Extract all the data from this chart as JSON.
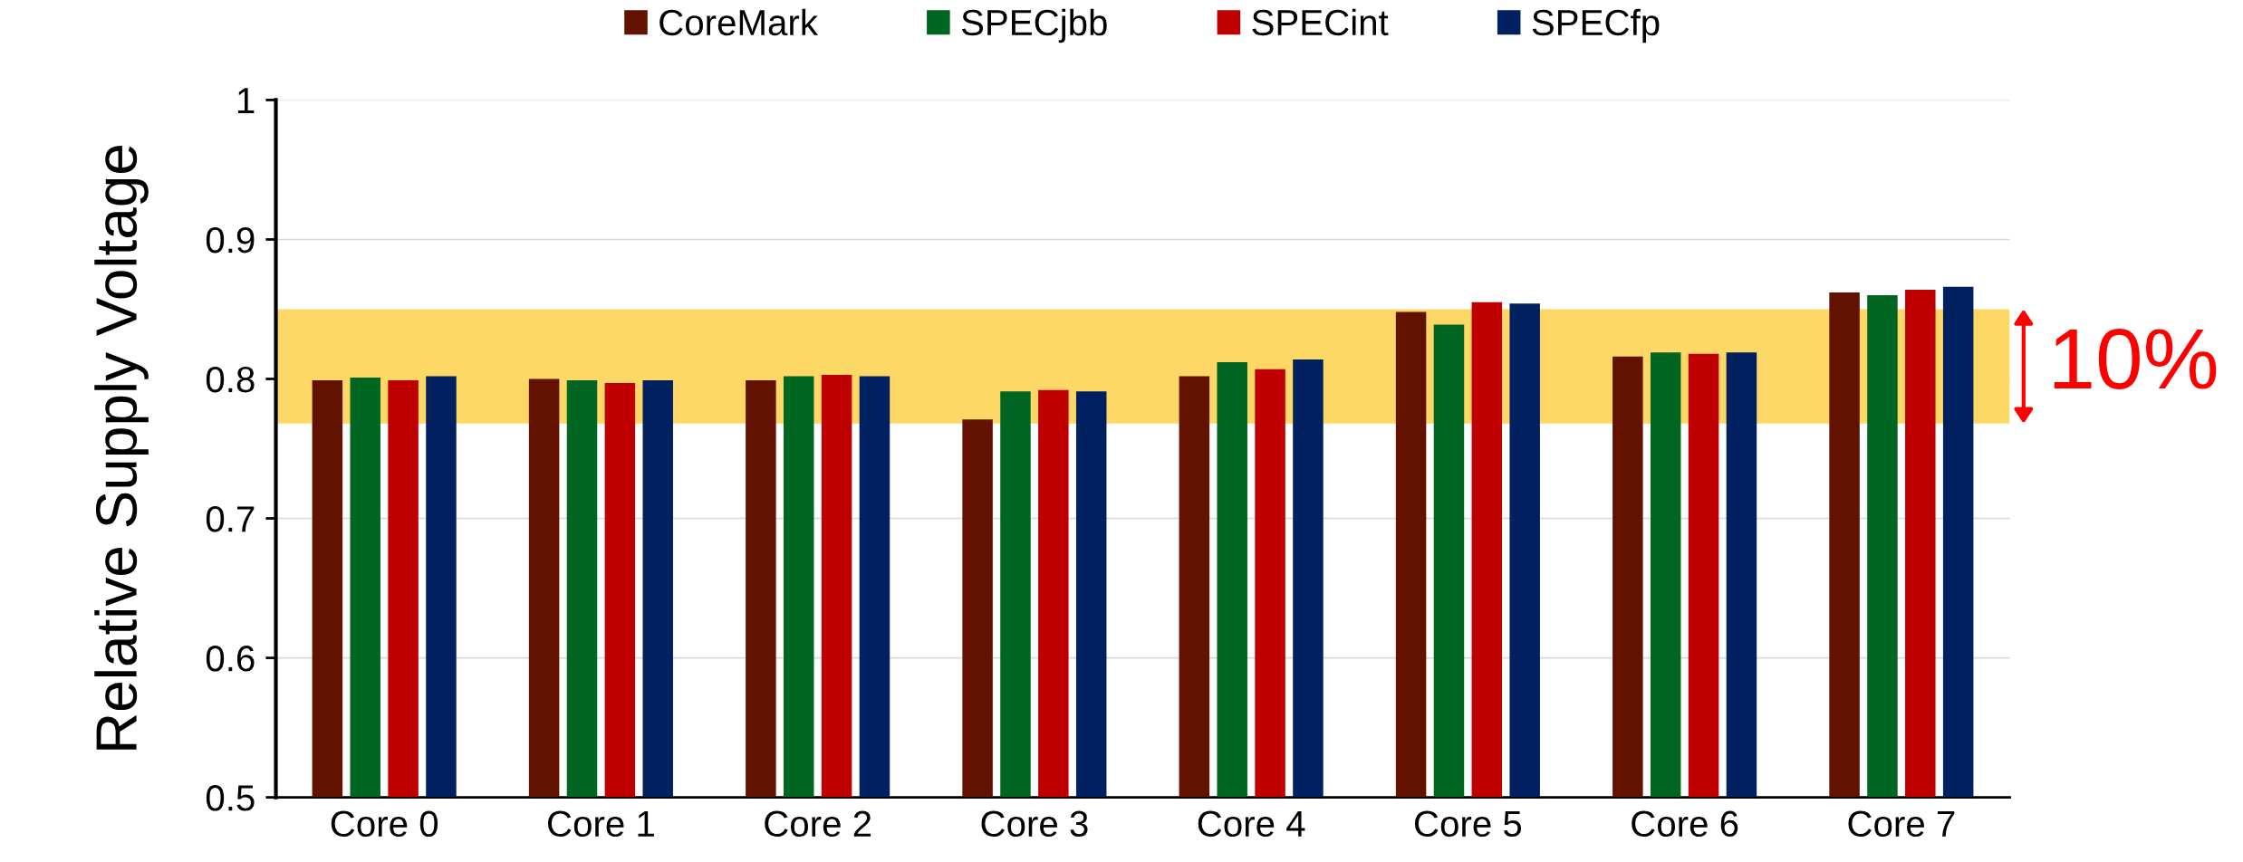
{
  "chart_data": {
    "type": "bar",
    "ylabel": "Relative Supply Voltage",
    "categories": [
      "Core 0",
      "Core 1",
      "Core 2",
      "Core 3",
      "Core 4",
      "Core 5",
      "Core 6",
      "Core 7"
    ],
    "series": [
      {
        "name": "CoreMark",
        "color": "#641200",
        "values": [
          0.799,
          0.8,
          0.799,
          0.771,
          0.802,
          0.848,
          0.816,
          0.862
        ]
      },
      {
        "name": "SPECjbb",
        "color": "#006622",
        "values": [
          0.801,
          0.799,
          0.802,
          0.791,
          0.812,
          0.839,
          0.819,
          0.86
        ]
      },
      {
        "name": "SPECint",
        "color": "#c00000",
        "values": [
          0.799,
          0.797,
          0.803,
          0.792,
          0.807,
          0.855,
          0.818,
          0.864
        ]
      },
      {
        "name": "SPECfp",
        "color": "#002060",
        "values": [
          0.802,
          0.799,
          0.802,
          0.791,
          0.814,
          0.854,
          0.819,
          0.866
        ]
      }
    ],
    "ylim": [
      0.5,
      1
    ],
    "yticks": [
      0.5,
      0.6,
      0.7,
      0.8,
      0.9,
      1
    ],
    "grid": "y",
    "legend": "top",
    "bands": [
      {
        "axis": "y",
        "from": 0.768,
        "to": 0.85,
        "label": "10%",
        "color": "#fdd866"
      }
    ]
  }
}
